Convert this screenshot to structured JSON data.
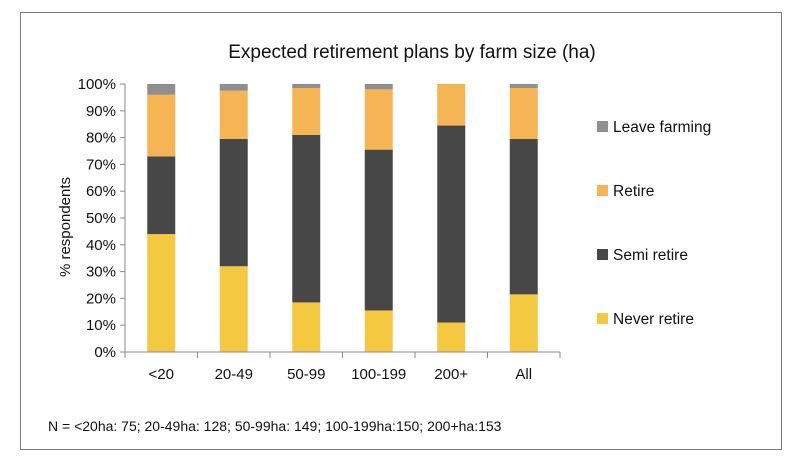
{
  "chart_data": {
    "type": "bar",
    "stacked": true,
    "title": "Expected retirement plans by farm size (ha)",
    "xlabel": "",
    "ylabel": "% respondents",
    "ylim": [
      0,
      100
    ],
    "yticks": [
      "0%",
      "10%",
      "20%",
      "30%",
      "40%",
      "50%",
      "60%",
      "70%",
      "80%",
      "90%",
      "100%"
    ],
    "categories": [
      "<20",
      "20-49",
      "50-99",
      "100-199",
      "200+",
      "All"
    ],
    "series": [
      {
        "name": "Never retire",
        "color": "#f5c842",
        "values": [
          44,
          32,
          18.5,
          15.5,
          11,
          21.5
        ]
      },
      {
        "name": "Semi retire",
        "color": "#474747",
        "values": [
          29,
          47.5,
          62.5,
          60,
          73.5,
          58
        ]
      },
      {
        "name": "Retire",
        "color": "#f5b555",
        "values": [
          23,
          18,
          17.5,
          22.5,
          15.5,
          19
        ]
      },
      {
        "name": "Leave farming",
        "color": "#8f8f8f",
        "values": [
          4,
          2.5,
          1.5,
          2,
          0,
          1.5
        ]
      }
    ],
    "legend_position": "right",
    "grid": false,
    "footnote": "N = <20ha: 75; 20-49ha: 128; 50-99ha: 149; 100-199ha:150; 200+ha:153"
  }
}
